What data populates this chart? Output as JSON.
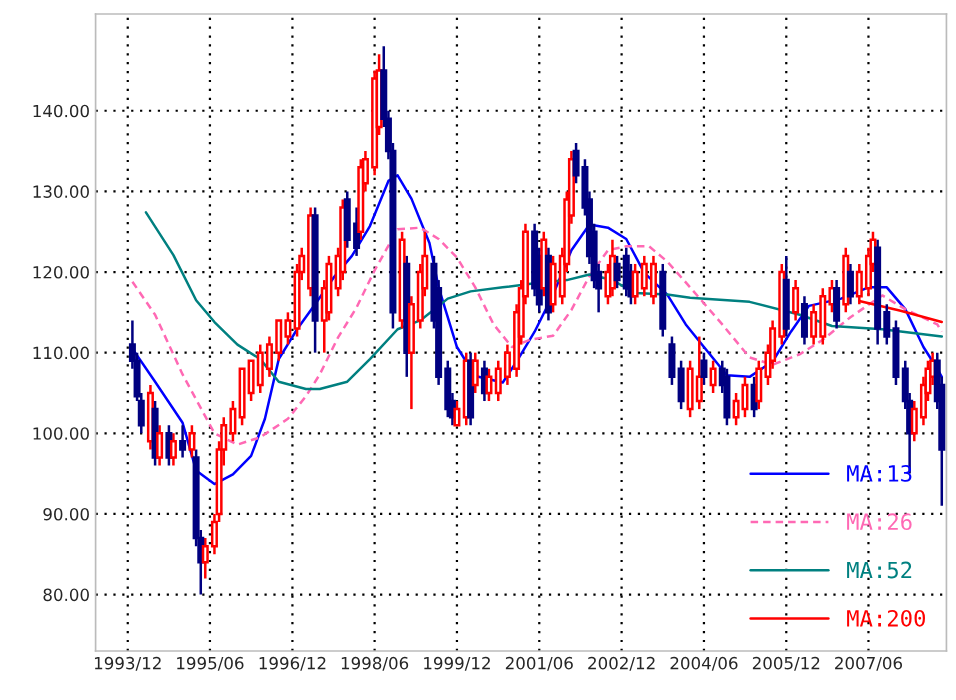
{
  "chart_data": {
    "type": "candlestick",
    "x": [
      "1994-01",
      "1994-02",
      "1994-03",
      "1994-05",
      "1994-06",
      "1994-07",
      "1994-09",
      "1994-10",
      "1994-12",
      "1995-02",
      "1995-03",
      "1995-04",
      "1995-05",
      "1995-07",
      "1995-08",
      "1995-09",
      "1995-11",
      "1996-01",
      "1996-03",
      "1996-05",
      "1996-07",
      "1996-09",
      "1996-11",
      "1997-01",
      "1997-02",
      "1997-04",
      "1997-05",
      "1997-07",
      "1997-08",
      "1997-10",
      "1997-11",
      "1997-12",
      "1998-02",
      "1998-03",
      "1998-04",
      "1998-06",
      "1998-07",
      "1998-08",
      "1998-09",
      "1998-10",
      "1998-12",
      "1999-01",
      "1999-02",
      "1999-04",
      "1999-05",
      "1999-07",
      "1999-08",
      "1999-10",
      "1999-11",
      "1999-12",
      "2000-02",
      "2000-03",
      "2000-04",
      "2000-06",
      "2000-07",
      "2000-09",
      "2000-11",
      "2001-01",
      "2001-02",
      "2001-03",
      "2001-05",
      "2001-06",
      "2001-07",
      "2001-08",
      "2001-09",
      "2001-11",
      "2001-12",
      "2002-01",
      "2002-02",
      "2002-04",
      "2002-05",
      "2002-06",
      "2002-07",
      "2002-09",
      "2002-10",
      "2002-11",
      "2003-01",
      "2003-02",
      "2003-03",
      "2003-05",
      "2003-07",
      "2003-09",
      "2003-11",
      "2004-01",
      "2004-03",
      "2004-05",
      "2004-06",
      "2004-08",
      "2004-10",
      "2004-11",
      "2005-01",
      "2005-03",
      "2005-05",
      "2005-06",
      "2005-08",
      "2005-09",
      "2005-11",
      "2005-12",
      "2006-02",
      "2006-04",
      "2006-06",
      "2006-08",
      "2006-10",
      "2006-11",
      "2007-01",
      "2007-02",
      "2007-04",
      "2007-06",
      "2007-07",
      "2007-08",
      "2007-10",
      "2007-12",
      "2008-02",
      "2008-03",
      "2008-04",
      "2008-06",
      "2008-07",
      "2008-08",
      "2008-09",
      "2008-10"
    ],
    "ohlc": [
      [
        111,
        114,
        108,
        109
      ],
      [
        109,
        110,
        104,
        104.6
      ],
      [
        104,
        105,
        100,
        101
      ],
      [
        99,
        106,
        98,
        105
      ],
      [
        103,
        104,
        96,
        97
      ],
      [
        97,
        101,
        96,
        100
      ],
      [
        100,
        101,
        96,
        97
      ],
      [
        97,
        100,
        96,
        99
      ],
      [
        99,
        101,
        97,
        98
      ],
      [
        98,
        101,
        97,
        100
      ],
      [
        97,
        98,
        86,
        87
      ],
      [
        87,
        88,
        80,
        84
      ],
      [
        84,
        87,
        82,
        86
      ],
      [
        86,
        90,
        85,
        89
      ],
      [
        90,
        99,
        89,
        98
      ],
      [
        98,
        102,
        96,
        101
      ],
      [
        100,
        104,
        99,
        103
      ],
      [
        102,
        108,
        101,
        108
      ],
      [
        105,
        109,
        104,
        109
      ],
      [
        106,
        111,
        105,
        110
      ],
      [
        108,
        112,
        107,
        111
      ],
      [
        110,
        114,
        109,
        114
      ],
      [
        112,
        115,
        111,
        114
      ],
      [
        113,
        121,
        112,
        120
      ],
      [
        120,
        123,
        119,
        122
      ],
      [
        118,
        128,
        117,
        127
      ],
      [
        127,
        128,
        110,
        114
      ],
      [
        114,
        119,
        110,
        118
      ],
      [
        115,
        122,
        114,
        121
      ],
      [
        118,
        123,
        117,
        122
      ],
      [
        120,
        129,
        119,
        128
      ],
      [
        129,
        130,
        123,
        124
      ],
      [
        126,
        128,
        122,
        123
      ],
      [
        125,
        134,
        124,
        133
      ],
      [
        131,
        135,
        130,
        134
      ],
      [
        133,
        145,
        132,
        144
      ],
      [
        138,
        147,
        137,
        145
      ],
      [
        145,
        148,
        138,
        139
      ],
      [
        139,
        140,
        134,
        135
      ],
      [
        135,
        136,
        113,
        115
      ],
      [
        114,
        125,
        113,
        124
      ],
      [
        121,
        122,
        107,
        110
      ],
      [
        110,
        117,
        103,
        116
      ],
      [
        114,
        121,
        113,
        120
      ],
      [
        118,
        125,
        117,
        122
      ],
      [
        121,
        122,
        113,
        114
      ],
      [
        118,
        119,
        106,
        107
      ],
      [
        108,
        109,
        102,
        103
      ],
      [
        104,
        105,
        101,
        102
      ],
      [
        101,
        104,
        101,
        103
      ],
      [
        102,
        110,
        101,
        109
      ],
      [
        109,
        110,
        101,
        102
      ],
      [
        106,
        110,
        105,
        109
      ],
      [
        108,
        109,
        104,
        105
      ],
      [
        105,
        108,
        104,
        107
      ],
      [
        105,
        109,
        104,
        108
      ],
      [
        107,
        111,
        106,
        110
      ],
      [
        108,
        116,
        107,
        115
      ],
      [
        112,
        119,
        111,
        118
      ],
      [
        117,
        126,
        116,
        125
      ],
      [
        125,
        126,
        117,
        118
      ],
      [
        122,
        123,
        115,
        116
      ],
      [
        118,
        125,
        117,
        124
      ],
      [
        122,
        123,
        114,
        115
      ],
      [
        116,
        122,
        115,
        121
      ],
      [
        117,
        123,
        116,
        122
      ],
      [
        121,
        130,
        120,
        129
      ],
      [
        127,
        135,
        126,
        134
      ],
      [
        135,
        136,
        131,
        132
      ],
      [
        133,
        134,
        127,
        128
      ],
      [
        129,
        130,
        121,
        122
      ],
      [
        125,
        126,
        118,
        119
      ],
      [
        120,
        121,
        115,
        118
      ],
      [
        117,
        121,
        116,
        120
      ],
      [
        118,
        124,
        117,
        122
      ],
      [
        121,
        122,
        118,
        119
      ],
      [
        122,
        123,
        117,
        118
      ],
      [
        120,
        121,
        116,
        117
      ],
      [
        117,
        121,
        116,
        120
      ],
      [
        118,
        122,
        117,
        121
      ],
      [
        117,
        122,
        116,
        121
      ],
      [
        120,
        121,
        112,
        113
      ],
      [
        111,
        112,
        106,
        107
      ],
      [
        108,
        109,
        103,
        104
      ],
      [
        103,
        109,
        102,
        108
      ],
      [
        104,
        112,
        103,
        107
      ],
      [
        109,
        110,
        106,
        107
      ],
      [
        106,
        109,
        105,
        108
      ],
      [
        108,
        109,
        105,
        106
      ],
      [
        107,
        108,
        101,
        102
      ],
      [
        102,
        105,
        101,
        104
      ],
      [
        103,
        107,
        102,
        106
      ],
      [
        106,
        107,
        102,
        103
      ],
      [
        104,
        109,
        103,
        108
      ],
      [
        107,
        111,
        106,
        110
      ],
      [
        109,
        114,
        108,
        113
      ],
      [
        112,
        121,
        111,
        120
      ],
      [
        119,
        122,
        112,
        113
      ],
      [
        115,
        119,
        114,
        118
      ],
      [
        116,
        117,
        111,
        112
      ],
      [
        112,
        116,
        111,
        115
      ],
      [
        112,
        118,
        111,
        117
      ],
      [
        116,
        119,
        115,
        118
      ],
      [
        118,
        119,
        113,
        114
      ],
      [
        116,
        123,
        115,
        122
      ],
      [
        120,
        121,
        116,
        117
      ],
      [
        117,
        121,
        116,
        120
      ],
      [
        118,
        123,
        117,
        122
      ],
      [
        121,
        125,
        120,
        124
      ],
      [
        123,
        124,
        111,
        113
      ],
      [
        115,
        116,
        111,
        112
      ],
      [
        113,
        114,
        106,
        107
      ],
      [
        108,
        109,
        103,
        104
      ],
      [
        104,
        105,
        95,
        100
      ],
      [
        100,
        104,
        99,
        103
      ],
      [
        102,
        107,
        101,
        106
      ],
      [
        105,
        109,
        104,
        108
      ],
      [
        107,
        110,
        106,
        109
      ],
      [
        109,
        110,
        103,
        104
      ],
      [
        106,
        107,
        91,
        98
      ]
    ],
    "series": [
      {
        "type": "line",
        "name": "MA:13",
        "color": "#0000ff",
        "line_style": "solid",
        "x": [
          "1994-01",
          "1994-06",
          "1994-12",
          "1995-03",
          "1995-07",
          "1995-11",
          "1996-03",
          "1996-06",
          "1996-09",
          "1997-01",
          "1997-05",
          "1997-09",
          "1998-01",
          "1998-05",
          "1998-09",
          "1998-11",
          "1999-02",
          "1999-06",
          "1999-08",
          "1999-12",
          "2000-04",
          "2000-10",
          "2001-01",
          "2001-05",
          "2001-09",
          "2002-01",
          "2002-05",
          "2002-09",
          "2003-01",
          "2003-05",
          "2003-10",
          "2004-02",
          "2004-06",
          "2004-11",
          "2005-04",
          "2005-09",
          "2006-01",
          "2006-05",
          "2006-12",
          "2007-06",
          "2007-10",
          "2008-02",
          "2008-06",
          "2008-09",
          "2008-10"
        ],
        "values": [
          110.5,
          106.4,
          101.3,
          95.4,
          93.7,
          94.9,
          97.2,
          101.8,
          109.2,
          112.9,
          116,
          119.3,
          122,
          125.7,
          131.3,
          132,
          129.1,
          123.6,
          118.1,
          110.7,
          107.1,
          106.3,
          108.9,
          112.6,
          117.2,
          122.7,
          125.9,
          125.5,
          124.1,
          119.9,
          117.2,
          113.5,
          110.7,
          107.2,
          107,
          108.9,
          112.6,
          115.8,
          116.7,
          118.1,
          118.1,
          115.4,
          110.7,
          108,
          107
        ]
      },
      {
        "type": "line",
        "name": "MA:26",
        "color": "#ff69b4",
        "line_style": "dashed",
        "x": [
          "1994-01",
          "1994-06",
          "1994-12",
          "1995-07",
          "1995-12",
          "1996-05",
          "1996-11",
          "1997-03",
          "1997-06",
          "1997-10",
          "1998-02",
          "1998-06",
          "1998-11",
          "1999-04",
          "1999-08",
          "1999-12",
          "2000-04",
          "2000-08",
          "2000-12",
          "2001-04",
          "2001-09",
          "2002-01",
          "2002-05",
          "2002-09",
          "2003-01",
          "2003-06",
          "2003-10",
          "2004-03",
          "2004-10",
          "2005-04",
          "2005-09",
          "2006-03",
          "2006-08",
          "2007-02",
          "2007-09",
          "2008-02",
          "2008-09",
          "2008-10"
        ],
        "values": [
          118.8,
          114.7,
          107.3,
          100,
          98.6,
          99.5,
          101.8,
          104.6,
          107.3,
          111.9,
          115.6,
          120.2,
          125.3,
          125.5,
          124.1,
          121.8,
          118.1,
          113.5,
          110.7,
          111.6,
          112.1,
          115.3,
          119.5,
          122.7,
          123.2,
          123.2,
          121.3,
          118.1,
          113.5,
          109.4,
          108.5,
          109.8,
          111.6,
          114.4,
          117.1,
          115.4,
          113.5,
          112.6
        ]
      },
      {
        "type": "line",
        "name": "MA:52",
        "color": "#008080",
        "line_style": "solid",
        "x": [
          "1994-04",
          "1994-10",
          "1995-03",
          "1995-07",
          "1995-12",
          "1996-05",
          "1996-09",
          "1997-03",
          "1997-06",
          "1997-12",
          "1998-05",
          "1998-11",
          "1999-04",
          "1999-10",
          "2000-03",
          "2000-10",
          "2001-05",
          "2001-12",
          "2002-05",
          "2002-10",
          "2003-03",
          "2003-10",
          "2004-03",
          "2005-04",
          "2006-03",
          "2006-10",
          "2007-09",
          "2008-10"
        ],
        "values": [
          127.4,
          122.1,
          116.5,
          113.8,
          111,
          109.2,
          106.4,
          105.5,
          105.5,
          106.4,
          109.2,
          112.9,
          114,
          116.7,
          117.6,
          118.1,
          118.6,
          119,
          119.7,
          119,
          117.4,
          117.2,
          116.8,
          116.3,
          114.7,
          113.3,
          112.9,
          112
        ]
      },
      {
        "type": "line",
        "name": "MA:200",
        "color": "#ff0000",
        "line_style": "solid",
        "x": [
          "2007-04",
          "2008-01",
          "2008-10"
        ],
        "values": [
          116.4,
          115.2,
          113.8
        ]
      }
    ],
    "xlim": [
      "1993-05",
      "2008-11"
    ],
    "xticks": [
      {
        "value": "1993-12",
        "label": "1993/12"
      },
      {
        "value": "1995-06",
        "label": "1995/06"
      },
      {
        "value": "1996-12",
        "label": "1996/12"
      },
      {
        "value": "1998-06",
        "label": "1998/06"
      },
      {
        "value": "1999-12",
        "label": "1999/12"
      },
      {
        "value": "2001-06",
        "label": "2001/06"
      },
      {
        "value": "2002-12",
        "label": "2002/12"
      },
      {
        "value": "2004-06",
        "label": "2004/06"
      },
      {
        "value": "2005-12",
        "label": "2005/12"
      },
      {
        "value": "2007-06",
        "label": "2007/06"
      }
    ],
    "ylim": [
      73,
      152
    ],
    "yticks": [
      {
        "value": 80,
        "label": "80.00"
      },
      {
        "value": 90,
        "label": "90.00"
      },
      {
        "value": 100,
        "label": "100.00"
      },
      {
        "value": 110,
        "label": "110.00"
      },
      {
        "value": 120,
        "label": "120.00"
      },
      {
        "value": 130,
        "label": "130.00"
      },
      {
        "value": 140,
        "label": "140.00"
      }
    ],
    "grid": true,
    "legend": "bottom right",
    "marker": "none"
  }
}
